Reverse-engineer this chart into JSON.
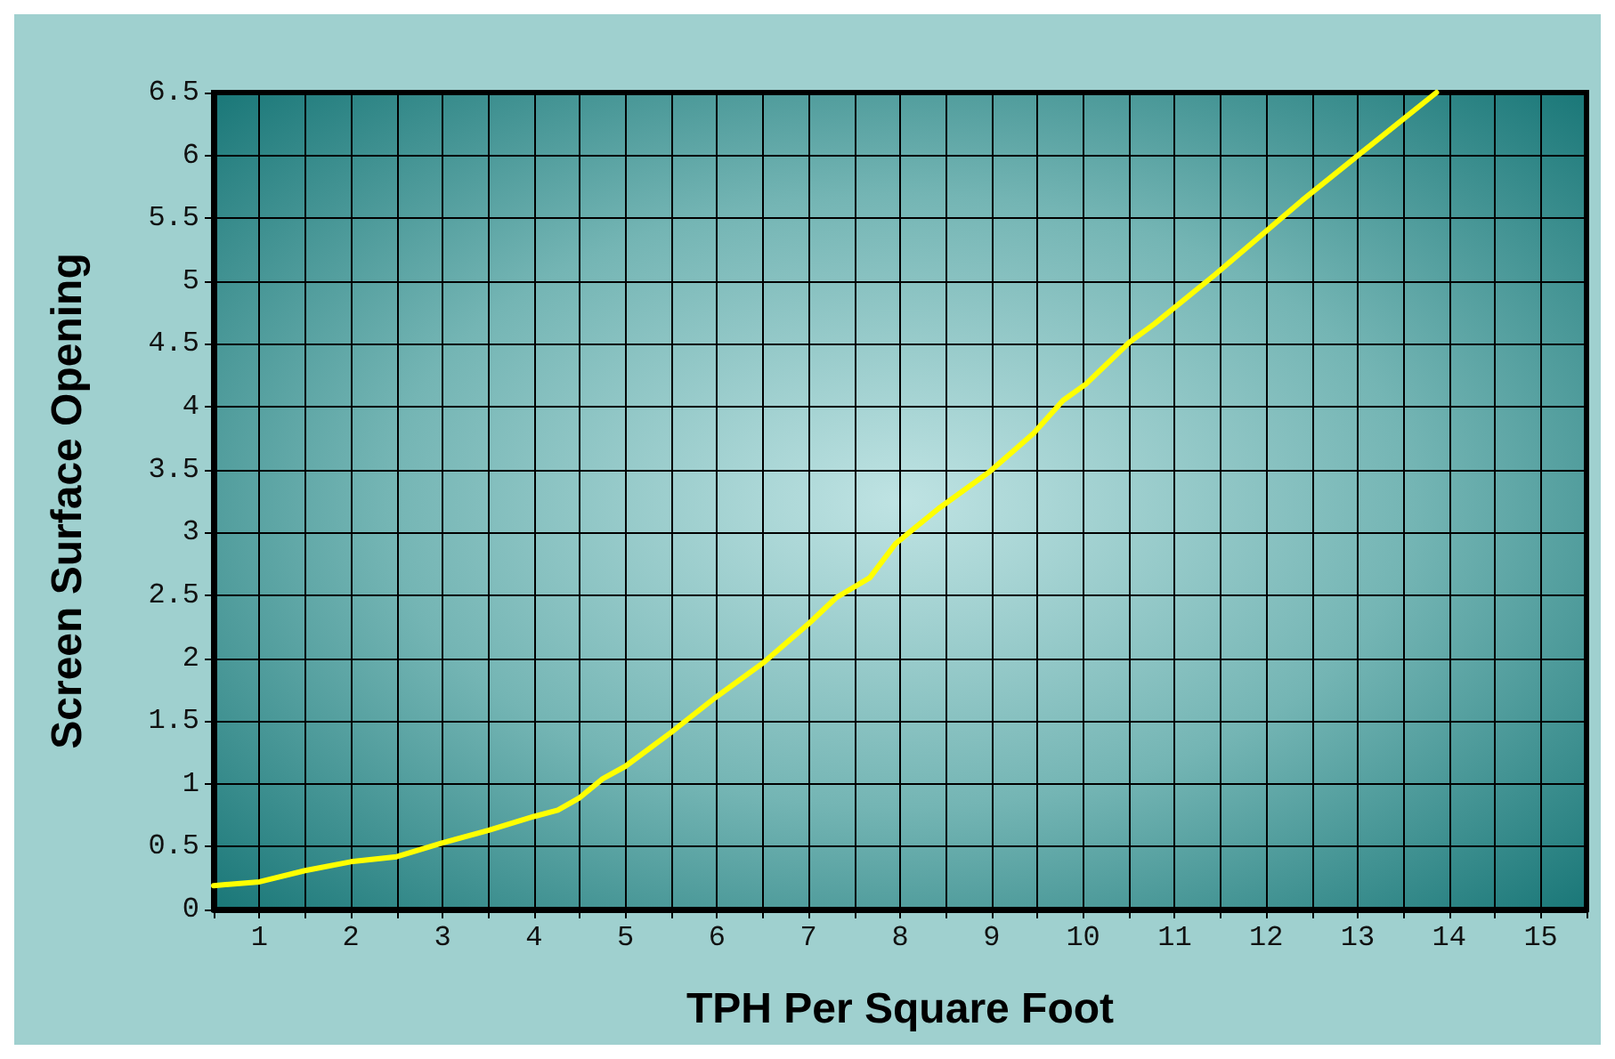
{
  "chart_data": {
    "type": "line",
    "xlabel": "TPH Per Square Foot",
    "ylabel": "Screen Surface Opening",
    "xlim": [
      0.5,
      15.5
    ],
    "xticks": [
      {
        "value": 0.5,
        "label": null
      },
      1,
      {
        "value": 1.5,
        "label": null
      },
      2,
      {
        "value": 2.5,
        "label": null
      },
      3,
      {
        "value": 3.5,
        "label": null
      },
      4,
      {
        "value": 4.5,
        "label": null
      },
      5,
      {
        "value": 5.5,
        "label": null
      },
      6,
      {
        "value": 6.5,
        "label": null
      },
      7,
      {
        "value": 7.5,
        "label": null
      },
      8,
      {
        "value": 8.5,
        "label": null
      },
      9,
      {
        "value": 9.5,
        "label": null
      },
      10,
      {
        "value": 10.5,
        "label": null
      },
      11,
      {
        "value": 11.5,
        "label": null
      },
      12,
      {
        "value": 12.5,
        "label": null
      },
      13,
      {
        "value": 13.5,
        "label": null
      },
      14,
      {
        "value": 14.5,
        "label": null
      },
      15,
      {
        "value": 15.5,
        "label": null
      }
    ],
    "ylim": [
      0,
      6.5
    ],
    "yticks": [
      0,
      0.5,
      1,
      1.5,
      2,
      2.5,
      3,
      3.5,
      4,
      4.5,
      5,
      5.5,
      6,
      6.5
    ],
    "grid": true,
    "marker": "none",
    "line_style": "solid",
    "series": [
      {
        "color": "#ffff00",
        "x": [
          0.5,
          1,
          1.5,
          2,
          2.5,
          3,
          3.5,
          4,
          4.26,
          4.5,
          4.75,
          5,
          5.5,
          5.97,
          6.5,
          7.01,
          7.3,
          7.67,
          7.95,
          8.42,
          8.99,
          9.46,
          9.78,
          10.03,
          10.5,
          10.78,
          11.44,
          12.39,
          13.14,
          13.86
        ],
        "values": [
          0.19,
          0.22,
          0.31,
          0.38,
          0.42,
          0.53,
          0.63,
          0.74,
          0.79,
          0.89,
          1.04,
          1.14,
          1.41,
          1.68,
          1.96,
          2.28,
          2.48,
          2.64,
          2.91,
          3.19,
          3.49,
          3.79,
          4.05,
          4.18,
          4.51,
          4.66,
          5.05,
          5.64,
          6.08,
          6.5
        ]
      }
    ]
  }
}
